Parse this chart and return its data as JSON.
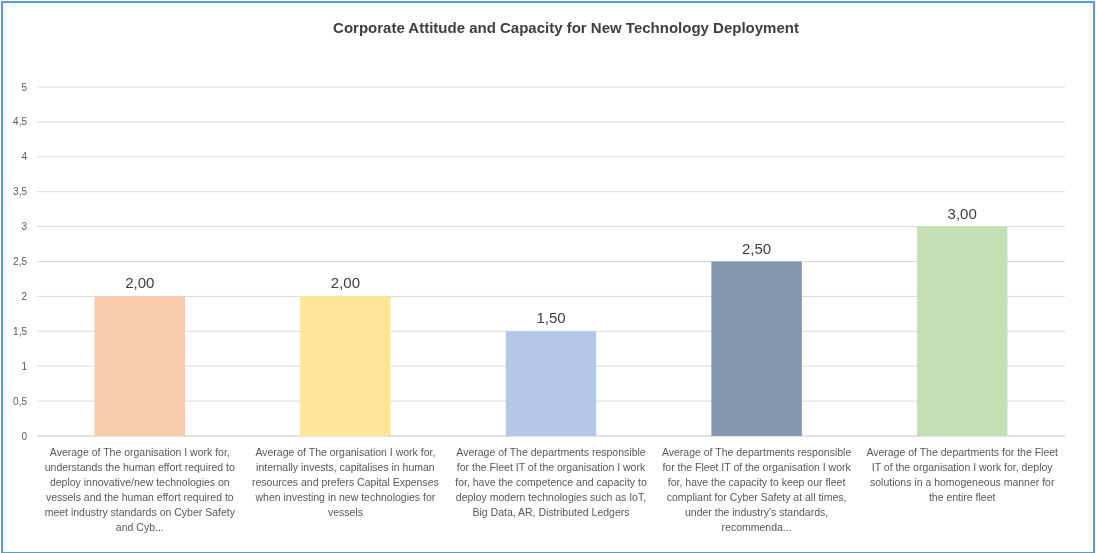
{
  "chart_data": {
    "type": "bar",
    "title": "Corporate Attitude and Capacity for New Technology Deployment",
    "categories": [
      "Average of The organisation I work for, understands the human effort required to deploy innovative/new technologies on vessels and the human effort required to meet industry standards on Cyber Safety and Cyb...",
      "Average of The organisation I work for, internally invests, capitalises in human resources and prefers Capital Expenses when investing in new technologies for vessels",
      "Average of The departments responsible for the Fleet IT of the organisation I work for, have the competence and capacity to deploy modern technologies such as IoT, Big Data, AR, Distributed Ledgers",
      "Average of The departments responsible for the Fleet IT of the organisation I work for, have the capacity to keep our fleet compliant for Cyber Safety at all times, under the industry's standards, recommenda...",
      "Average of The departments for the Fleet IT of the organisation I work for, deploy solutions in a homogeneous manner for the entire fleet"
    ],
    "values": [
      2,
      2,
      1.5,
      2.5,
      3
    ],
    "colors": [
      "#f8cbad",
      "#ffe699",
      "#b4c7e7",
      "#8497b0",
      "#c5e0b4"
    ],
    "value_labels": [
      "2,00",
      "2,00",
      "1,50",
      "2,50",
      "3,00"
    ],
    "ylim": [
      0,
      5
    ],
    "yticks": [
      0,
      {
        "value": 0.5,
        "label": "0,5"
      },
      1,
      {
        "value": 1.5,
        "label": "1,5"
      },
      2,
      {
        "value": 2.5,
        "label": "2,5"
      },
      3,
      {
        "value": 3.5,
        "label": "3,5"
      },
      4,
      {
        "value": 4.5,
        "label": "4,5"
      },
      5
    ],
    "grid": true
  }
}
